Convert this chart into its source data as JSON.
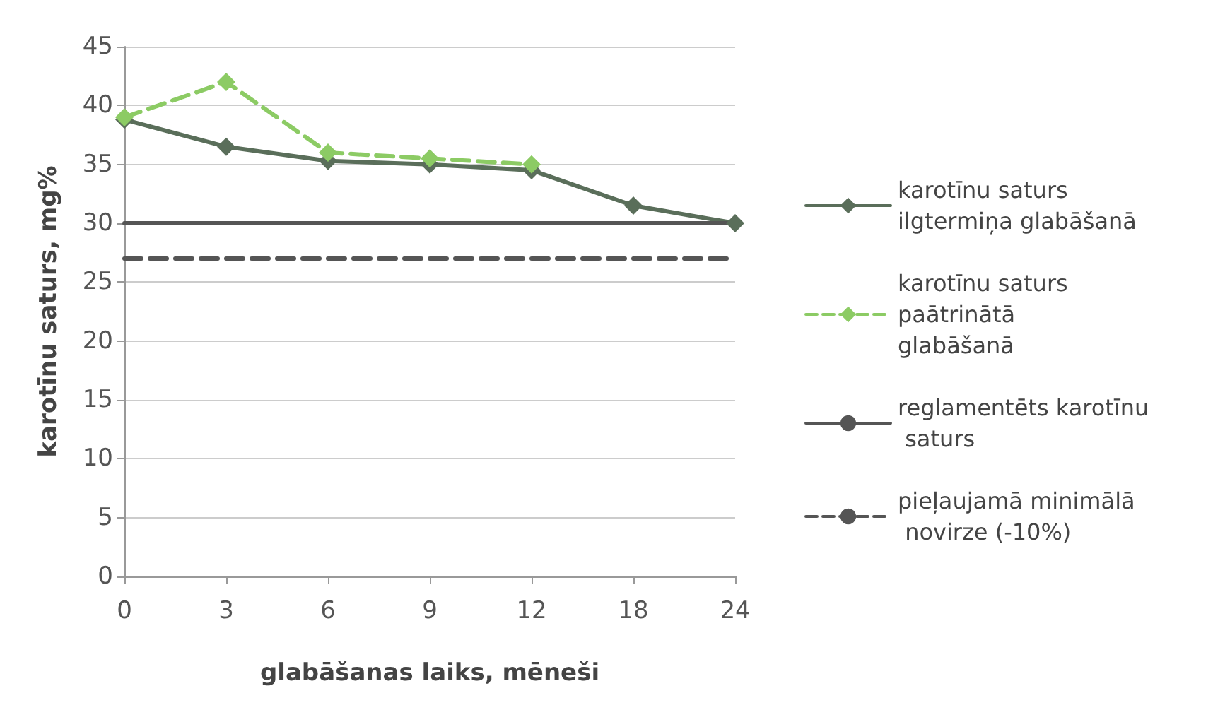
{
  "chart_data": {
    "type": "line",
    "xlabel": "glabāšanas laiks, mēneši",
    "ylabel": "karotīnu saturs, mg%",
    "categories": [
      "0",
      "3",
      "6",
      "9",
      "12",
      "18",
      "24"
    ],
    "series": [
      {
        "name": "karotīnu saturs ilgtermiņa glabāšanā",
        "color": "#5a6e5a",
        "marker": "diamond",
        "line_style": "solid",
        "values": [
          38.8,
          36.5,
          35.3,
          35,
          34.5,
          31.5,
          30
        ]
      },
      {
        "name": "karotīnu saturs paātrinātā glabāšanā",
        "color": "#8ccb64",
        "marker": "diamond",
        "line_style": "dashed",
        "values": [
          39,
          42,
          36,
          35.5,
          35,
          null,
          null
        ]
      },
      {
        "name": "reglamentēts karotīnu saturs",
        "color": "#555555",
        "marker": "none",
        "line_style": "solid",
        "values": [
          30,
          30,
          30,
          30,
          30,
          30,
          30
        ]
      },
      {
        "name": "pieļaujamā minimālā novirze (-10%)",
        "color": "#555555",
        "marker": "none",
        "line_style": "dashed",
        "values": [
          27,
          27,
          27,
          27,
          27,
          27,
          27
        ]
      }
    ],
    "ylim": [
      0,
      45
    ],
    "yticks": [
      0,
      5,
      10,
      15,
      20,
      25,
      30,
      35,
      40,
      45
    ],
    "grid": "y",
    "legend": "right"
  }
}
